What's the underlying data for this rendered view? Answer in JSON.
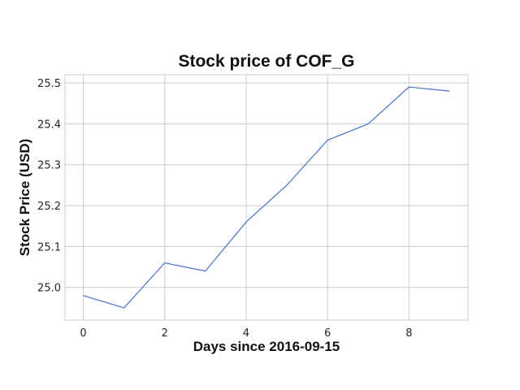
{
  "chart_data": {
    "type": "line",
    "title": "Stock price of COF_G",
    "xlabel": "Days since 2016-09-15",
    "ylabel": "Stock Price (USD)",
    "x": [
      0,
      1,
      2,
      3,
      4,
      5,
      6,
      7,
      8,
      9
    ],
    "series": [
      {
        "values": [
          24.98,
          24.95,
          25.06,
          25.04,
          25.16,
          25.25,
          25.36,
          25.4,
          25.49,
          25.48
        ],
        "color": "#4470cc"
      }
    ],
    "xlim": [
      -0.45,
      9.45
    ],
    "ylim": [
      24.92,
      25.52
    ],
    "xticks": [
      0,
      2,
      4,
      6,
      8
    ],
    "xtick_labels": [
      "0",
      "2",
      "4",
      "6",
      "8"
    ],
    "yticks": [
      25.0,
      25.1,
      25.2,
      25.3,
      25.4,
      25.5
    ],
    "ytick_labels": [
      "25.0",
      "25.1",
      "25.2",
      "25.3",
      "25.4",
      "25.5"
    ],
    "grid": true,
    "legend": false
  }
}
